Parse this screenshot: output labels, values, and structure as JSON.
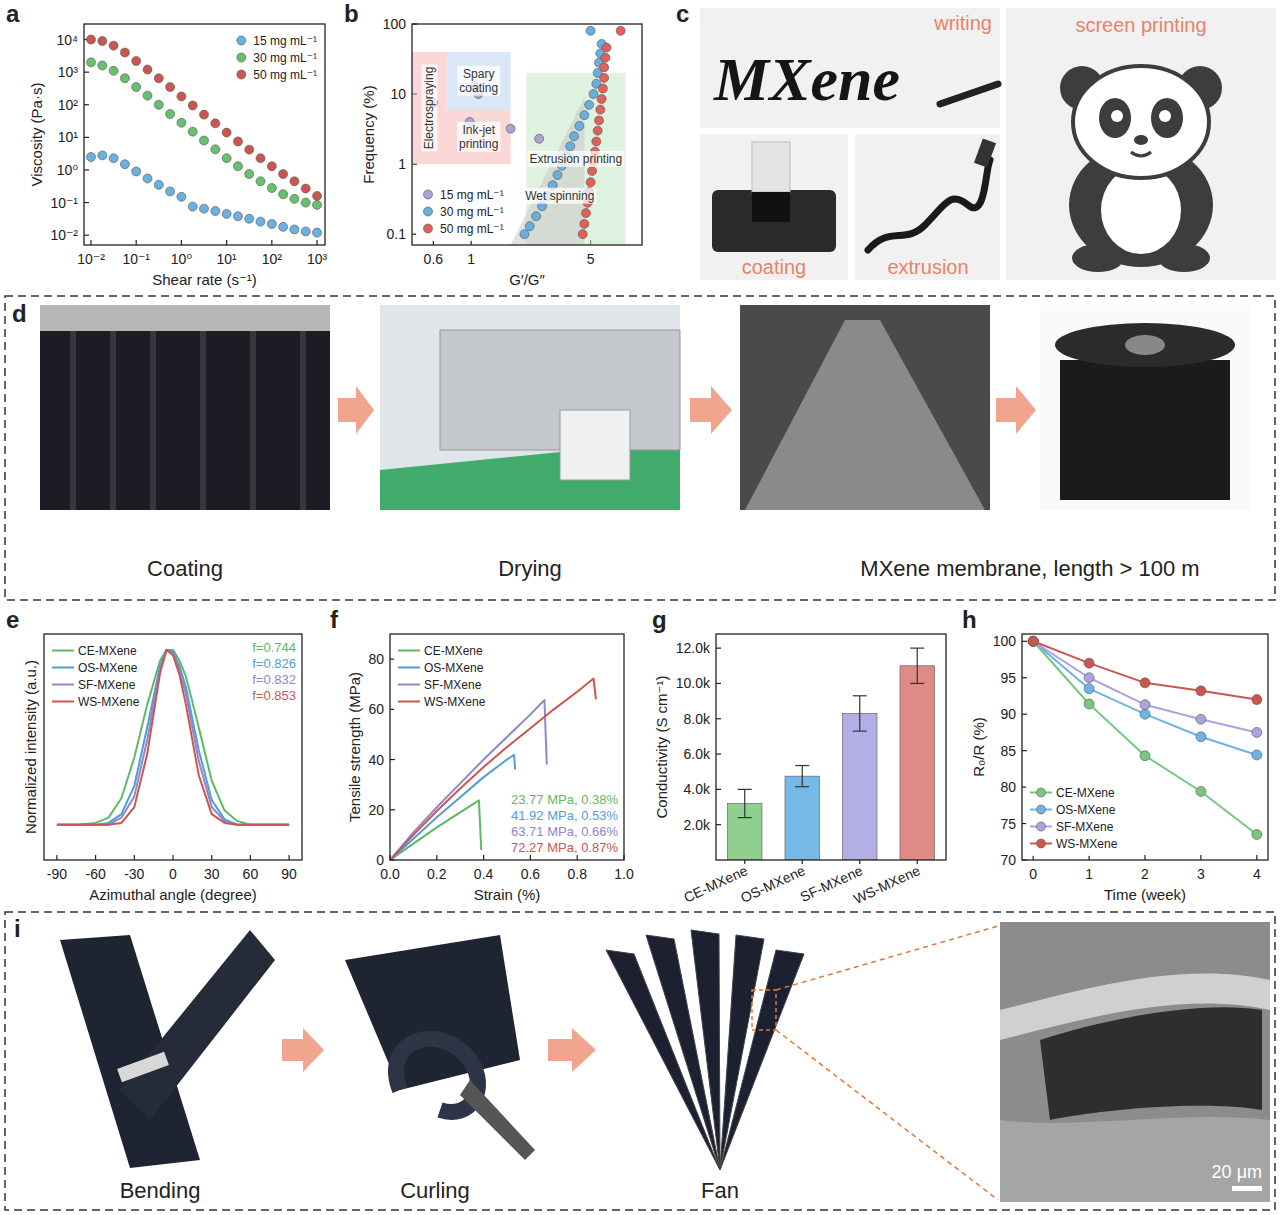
{
  "chart_data": [
    {
      "panel": "a",
      "type": "scatter",
      "marker": "circle",
      "log": true,
      "legend": "upper right",
      "x_label": "Shear rate (s⁻¹)",
      "y_label": "Viscosity (Pa·s)",
      "x": [
        0.01,
        0.0178,
        0.0316,
        0.0562,
        0.1,
        0.178,
        0.316,
        0.562,
        1,
        1.78,
        3.16,
        5.62,
        10,
        17.8,
        31.6,
        56.2,
        100,
        178,
        316,
        562,
        1000
      ],
      "xlim": [
        0.007,
        1500
      ],
      "xticks": [
        {
          "value": 0.01,
          "label": "10⁻²"
        },
        {
          "value": 0.1,
          "label": "10⁻¹"
        },
        {
          "value": 1,
          "label": "10⁰"
        },
        {
          "value": 10,
          "label": "10¹"
        },
        {
          "value": 100,
          "label": "10²"
        },
        {
          "value": 1000,
          "label": "10³"
        }
      ],
      "ylim": [
        0.005,
        30000
      ],
      "yticks": [
        {
          "value": 0.01,
          "label": "10⁻²"
        },
        {
          "value": 0.1,
          "label": "10⁻¹"
        },
        {
          "value": 1,
          "label": "10⁰"
        },
        {
          "value": 10,
          "label": "10¹"
        },
        {
          "value": 100,
          "label": "10²"
        },
        {
          "value": 1000,
          "label": "10³"
        },
        {
          "value": 10000,
          "label": "10⁴"
        }
      ],
      "series": [
        {
          "name": "15 mg mL⁻¹",
          "color": "#6bb0df",
          "values": [
            2.5,
            2.8,
            2.3,
            1.5,
            0.9,
            0.55,
            0.35,
            0.22,
            0.15,
            0.075,
            0.065,
            0.055,
            0.045,
            0.038,
            0.032,
            0.026,
            0.022,
            0.018,
            0.015,
            0.013,
            0.012
          ]
        },
        {
          "name": "30 mg mL⁻¹",
          "color": "#66c16e",
          "values": [
            2000,
            1600,
            1100,
            650,
            350,
            190,
            100,
            52,
            28,
            15,
            8,
            4.3,
            2.3,
            1.3,
            0.75,
            0.45,
            0.28,
            0.18,
            0.13,
            0.1,
            0.085
          ]
        },
        {
          "name": "50 mg mL⁻¹",
          "color": "#c9574f",
          "values": [
            10000,
            9000,
            6500,
            4000,
            2200,
            1200,
            650,
            350,
            180,
            95,
            50,
            27,
            14,
            7.5,
            4.2,
            2.3,
            1.3,
            0.75,
            0.45,
            0.27,
            0.16
          ]
        }
      ]
    },
    {
      "panel": "b",
      "type": "scatter",
      "log": true,
      "legend": "lower left",
      "x_label": "G′/G″",
      "y_label": "Frequency (%)",
      "xlim": [
        0.45,
        10
      ],
      "xticks": [
        0.6,
        1,
        5
      ],
      "ylim": [
        0.07,
        100
      ],
      "yticks": [
        0.1,
        1,
        10,
        100
      ],
      "regions": [
        {
          "label": "Electrospraying",
          "color": "#f6b8b8",
          "points": [
            [
              0.45,
              1
            ],
            [
              0.72,
              1
            ],
            [
              0.72,
              40
            ],
            [
              0.45,
              40
            ]
          ]
        },
        {
          "label": "Ink-jet printing",
          "color": "#f6b8b8",
          "points": [
            [
              0.72,
              1
            ],
            [
              1.7,
              1
            ],
            [
              1.7,
              6
            ],
            [
              0.72,
              6
            ]
          ]
        },
        {
          "label": "Spary coating",
          "color": "#b9d3ef",
          "points": [
            [
              0.72,
              6
            ],
            [
              1.7,
              6
            ],
            [
              1.7,
              40
            ],
            [
              0.72,
              40
            ]
          ]
        },
        {
          "label": "Extrusion printing",
          "color": "#c4e8c4",
          "points": [
            [
              2.1,
              0.07
            ],
            [
              8,
              0.07
            ],
            [
              8,
              20
            ],
            [
              2.1,
              20
            ]
          ]
        },
        {
          "label": "Wet spinning",
          "color": "#c8c8c8",
          "points": [
            [
              1.7,
              0.07
            ],
            [
              4.6,
              0.07
            ],
            [
              4.6,
              9
            ]
          ]
        }
      ],
      "series": [
        {
          "name": "15 mg mL⁻¹",
          "color": "#aaa2d4",
          "x": [
            0.6,
            1.05,
            1.1,
            0.98,
            1.7,
            2.5
          ],
          "values": [
            7.5,
            13,
            10,
            4,
            3.2,
            2.3
          ]
        },
        {
          "name": "30 mg mL⁻¹",
          "color": "#6aaede",
          "x": [
            2.05,
            2.2,
            2.4,
            2.6,
            2.8,
            3.0,
            3.2,
            3.4,
            3.6,
            3.8,
            4.0,
            4.3,
            4.6,
            4.9,
            5.2,
            5.4,
            5.5,
            5.6,
            5.7,
            5.8,
            5.0
          ],
          "values": [
            0.1,
            0.13,
            0.18,
            0.25,
            0.35,
            0.5,
            0.7,
            0.95,
            1.3,
            1.8,
            2.5,
            3.5,
            5,
            7,
            10,
            14,
            20,
            28,
            38,
            52,
            80
          ]
        },
        {
          "name": "50 mg mL⁻¹",
          "color": "#e0605a",
          "x": [
            4.5,
            4.6,
            4.7,
            4.8,
            4.9,
            5.0,
            5.1,
            5.2,
            5.3,
            5.4,
            5.5,
            5.6,
            5.7,
            5.8,
            5.9,
            6.0,
            6.0,
            6.1,
            6.2,
            7.5
          ],
          "values": [
            0.1,
            0.14,
            0.2,
            0.28,
            0.4,
            0.55,
            0.8,
            1.1,
            1.5,
            2.1,
            3,
            4.2,
            6,
            8.5,
            12,
            17,
            24,
            33,
            46,
            80
          ]
        }
      ]
    },
    {
      "panel": "e",
      "type": "line",
      "legend": "upper left",
      "tick_labels": "x",
      "x_label": "Azimuthal angle (degree)",
      "y_label": "Normalized intensity (a.u.)",
      "x": [
        -90,
        -75,
        -60,
        -50,
        -40,
        -30,
        -20,
        -10,
        -5,
        0,
        5,
        10,
        20,
        30,
        40,
        50,
        60,
        75,
        90
      ],
      "xlim": [
        -100,
        100
      ],
      "xticks": [
        -90,
        -60,
        -30,
        0,
        30,
        60,
        90
      ],
      "ylim": [
        -0.2,
        1.08
      ],
      "annotations": [
        "f=0.744",
        "f=0.826",
        "f=0.832",
        "f=0.853"
      ],
      "series": [
        {
          "name": "CE-MXene",
          "color": "#5fb866",
          "values": [
            0,
            0,
            0.01,
            0.04,
            0.15,
            0.38,
            0.68,
            0.93,
            0.99,
            0.99,
            0.93,
            0.84,
            0.55,
            0.25,
            0.08,
            0.02,
            0,
            0,
            0
          ]
        },
        {
          "name": "OS-MXene",
          "color": "#4f9fd6",
          "values": [
            0,
            0,
            0,
            0.01,
            0.06,
            0.22,
            0.55,
            0.9,
            0.99,
            0.98,
            0.9,
            0.78,
            0.42,
            0.14,
            0.03,
            0,
            0,
            0,
            0
          ]
        },
        {
          "name": "SF-MXene",
          "color": "#8f86cc",
          "values": [
            0,
            0,
            0,
            0,
            0.04,
            0.16,
            0.48,
            0.88,
            0.99,
            0.97,
            0.88,
            0.74,
            0.36,
            0.1,
            0.02,
            0,
            0,
            0,
            0
          ]
        },
        {
          "name": "WS-MXene",
          "color": "#c9574f",
          "values": [
            0,
            0,
            0,
            0,
            0.01,
            0.1,
            0.4,
            0.86,
            0.99,
            0.96,
            0.85,
            0.68,
            0.28,
            0.06,
            0.01,
            0,
            0,
            0,
            0
          ]
        }
      ]
    },
    {
      "panel": "f",
      "type": "line",
      "legend": "upper left",
      "x_label": "Strain (%)",
      "y_label": "Tensile strength (MPa)",
      "xlim": [
        0,
        1.0
      ],
      "xticks": [
        {
          "value": 0,
          "label": "0.0"
        },
        {
          "value": 0.2,
          "label": "0.2"
        },
        {
          "value": 0.4,
          "label": "0.4"
        },
        {
          "value": 0.6,
          "label": "0.6"
        },
        {
          "value": 0.8,
          "label": "0.8"
        },
        {
          "value": 1.0,
          "label": "1.0"
        }
      ],
      "ylim": [
        0,
        90
      ],
      "yticks": [
        0,
        20,
        40,
        60,
        80
      ],
      "annotations": [
        "23.77 MPa, 0.38%",
        "41.92 MPa, 0.53%",
        "63.71 MPa, 0.66%",
        "72.27 MPa, 0.87%"
      ],
      "series": [
        {
          "name": "CE-MXene",
          "color": "#5fb866",
          "x": [
            0,
            0.1,
            0.2,
            0.3,
            0.38,
            0.39
          ],
          "values": [
            0,
            6.5,
            13,
            19,
            23.77,
            4
          ]
        },
        {
          "name": "OS-MXene",
          "color": "#4f9fd6",
          "x": [
            0,
            0.1,
            0.2,
            0.3,
            0.4,
            0.5,
            0.53,
            0.535
          ],
          "values": [
            0,
            8.5,
            17,
            25,
            33,
            40,
            41.92,
            36
          ]
        },
        {
          "name": "SF-MXene",
          "color": "#8f86cc",
          "x": [
            0,
            0.1,
            0.2,
            0.3,
            0.4,
            0.5,
            0.6,
            0.66,
            0.67
          ],
          "values": [
            0,
            11,
            21,
            30.5,
            40,
            49,
            58,
            63.71,
            38
          ]
        },
        {
          "name": "WS-MXene",
          "color": "#c9574f",
          "x": [
            0,
            0.1,
            0.2,
            0.3,
            0.4,
            0.5,
            0.6,
            0.7,
            0.8,
            0.87,
            0.88
          ],
          "values": [
            0,
            10,
            19.5,
            28.5,
            37,
            45,
            52.5,
            60,
            67,
            72.27,
            64
          ]
        }
      ]
    },
    {
      "panel": "g",
      "type": "bar",
      "y_label": "Conductivity (S cm⁻¹)",
      "categories": [
        "CE-MXene",
        "OS-MXene",
        "SF-MXene",
        "WS-MXene"
      ],
      "values": [
        3200,
        4750,
        8300,
        11000
      ],
      "errors": [
        800,
        600,
        1000,
        1000
      ],
      "colors": [
        "#8fd08f",
        "#76b9e6",
        "#b4aee6",
        "#de8b86"
      ],
      "ylim": [
        0,
        12800
      ],
      "yticks": [
        {
          "value": 2000,
          "label": "2.0k"
        },
        {
          "value": 4000,
          "label": "4.0k"
        },
        {
          "value": 6000,
          "label": "6.0k"
        },
        {
          "value": 8000,
          "label": "8.0k"
        },
        {
          "value": 10000,
          "label": "10.0k"
        },
        {
          "value": 12000,
          "label": "12.0k"
        }
      ]
    },
    {
      "panel": "h",
      "type": "line",
      "marker": "circle",
      "legend": "lower left",
      "x_label": "Time (week)",
      "y_label": "R₀/R (%)",
      "x": [
        0,
        1,
        2,
        3,
        4
      ],
      "xlim": [
        -0.2,
        4.2
      ],
      "xticks": [
        0,
        1,
        2,
        3,
        4
      ],
      "ylim": [
        70,
        101
      ],
      "yticks": [
        70,
        75,
        80,
        85,
        90,
        95,
        100
      ],
      "series": [
        {
          "name": "CE-MXene",
          "color": "#79c67f",
          "values": [
            100,
            91.4,
            84.3,
            79.4,
            73.5
          ]
        },
        {
          "name": "OS-MXene",
          "color": "#6cb4e4",
          "values": [
            100,
            93.5,
            90,
            86.9,
            84.4
          ]
        },
        {
          "name": "SF-MXene",
          "color": "#aaa3dc",
          "values": [
            100,
            95,
            91.3,
            89.3,
            87.5
          ]
        },
        {
          "name": "WS-MXene",
          "color": "#c9574f",
          "values": [
            100,
            97,
            94.3,
            93.2,
            92
          ]
        }
      ]
    }
  ],
  "photos": {
    "c": {
      "panel": "c",
      "frames": [
        {
          "label": "writing",
          "content": "MXene"
        },
        {
          "label": "coating"
        },
        {
          "label": "extrusion"
        },
        {
          "label": "screen printing"
        }
      ]
    },
    "d": {
      "panel": "d",
      "captions": [
        "Coating",
        "Drying",
        "MXene membrane, length > 100 m"
      ]
    },
    "i": {
      "panel": "i",
      "captions": [
        "Bending",
        "Curling",
        "Fan"
      ],
      "scale_bar": "20 μm"
    }
  }
}
